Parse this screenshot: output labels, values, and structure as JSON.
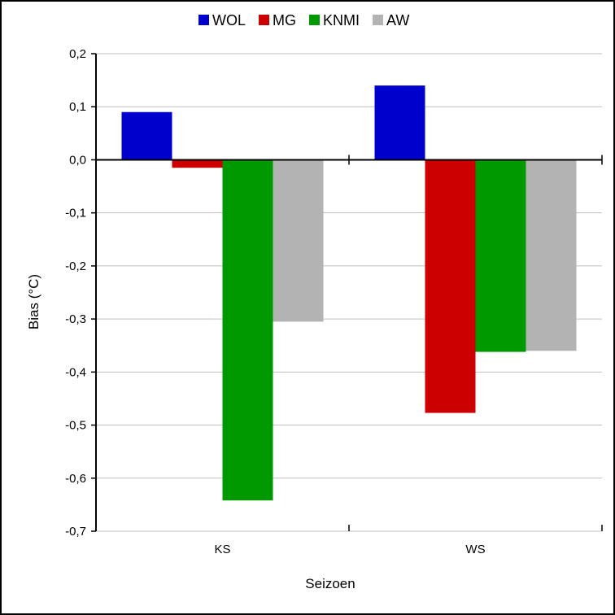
{
  "chart_data": {
    "type": "bar",
    "categories": [
      "KS",
      "WS"
    ],
    "series": [
      {
        "name": "WOL",
        "color": "#0000cc",
        "values": [
          0.09,
          0.14
        ]
      },
      {
        "name": "MG",
        "color": "#cc0000",
        "values": [
          -0.015,
          -0.477
        ]
      },
      {
        "name": "KNMI",
        "color": "#009900",
        "values": [
          -0.642,
          -0.362
        ]
      },
      {
        "name": "AW",
        "color": "#b3b3b3",
        "values": [
          -0.305,
          -0.36
        ]
      }
    ],
    "xlabel": "Seizoen",
    "ylabel": "Bias (°C)",
    "ylim": [
      -0.7,
      0.2
    ],
    "yticks": [
      "0,2",
      "0,1",
      "0,0",
      "-0,1",
      "-0,2",
      "-0,3",
      "-0,4",
      "-0,5",
      "-0,6",
      "-0,7"
    ],
    "yticks_values": [
      0.2,
      0.1,
      0.0,
      -0.1,
      -0.2,
      -0.3,
      -0.4,
      -0.5,
      -0.6,
      -0.7
    ],
    "grid": true,
    "legend_position": "top"
  }
}
